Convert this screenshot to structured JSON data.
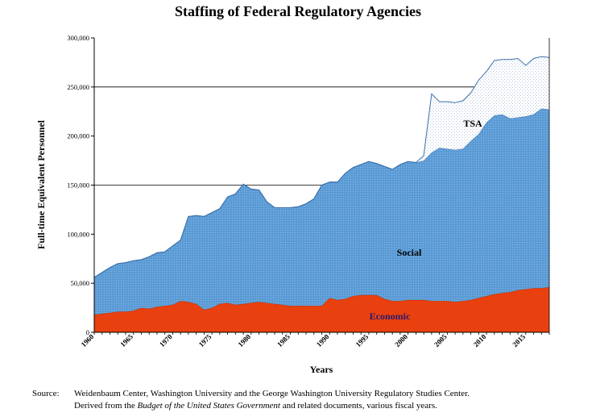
{
  "chart_data": {
    "type": "area",
    "title": "Staffing of Federal Regulatory Agencies",
    "xlabel": "Years",
    "ylabel": "Full-time Equivalent Personnel",
    "xlim": [
      1960,
      2018
    ],
    "ylim": [
      0,
      300000
    ],
    "stacked": true,
    "y_ticks": [
      "0",
      "50,000",
      "100,000",
      "150,000",
      "200,000",
      "250,000",
      "300,000"
    ],
    "x_ticks": [
      "1960",
      "1965",
      "1970",
      "1975",
      "1980",
      "1985",
      "1990",
      "1995",
      "2000",
      "2005",
      "2010",
      "2015"
    ],
    "grid": "horizontal lines at 150,000 and 250,000",
    "x": [
      1960,
      1961,
      1962,
      1963,
      1964,
      1965,
      1966,
      1967,
      1968,
      1969,
      1970,
      1971,
      1972,
      1973,
      1974,
      1975,
      1976,
      1977,
      1978,
      1979,
      1980,
      1981,
      1982,
      1983,
      1984,
      1985,
      1986,
      1987,
      1988,
      1989,
      1990,
      1991,
      1992,
      1993,
      1994,
      1995,
      1996,
      1997,
      1998,
      1999,
      2000,
      2001,
      2002,
      2003,
      2004,
      2005,
      2006,
      2007,
      2008,
      2009,
      2010,
      2011,
      2012,
      2013,
      2014,
      2015,
      2016,
      2017,
      2018
    ],
    "series": [
      {
        "name": "Economic",
        "color": "#e8400e",
        "values": [
          18000,
          19000,
          20000,
          21000,
          21000,
          22000,
          25000,
          24000,
          26000,
          27000,
          28000,
          32000,
          31000,
          29000,
          23000,
          25000,
          29000,
          30000,
          28000,
          29000,
          30000,
          31000,
          30000,
          29000,
          28000,
          27000,
          27000,
          27000,
          27000,
          27000,
          35000,
          33000,
          34000,
          37000,
          38000,
          38000,
          38000,
          34000,
          32000,
          32000,
          33000,
          33000,
          33000,
          32000,
          32000,
          32000,
          31000,
          32000,
          33000,
          35000,
          37000,
          39000,
          40000,
          41000,
          43000,
          44000,
          45000,
          45000,
          46000
        ]
      },
      {
        "name": "Social",
        "color": "#5b9bd5",
        "values": [
          38000,
          42000,
          46000,
          49000,
          50000,
          51000,
          49000,
          53000,
          55000,
          55000,
          60000,
          62000,
          87000,
          90000,
          95000,
          97000,
          97000,
          108000,
          113000,
          122000,
          116000,
          114000,
          103000,
          98000,
          99000,
          100000,
          101000,
          104000,
          109000,
          123000,
          118000,
          120000,
          128000,
          131000,
          133000,
          136000,
          134000,
          135000,
          134000,
          139000,
          141000,
          140000,
          142000,
          151000,
          156000,
          155000,
          155000,
          155000,
          162000,
          167000,
          177000,
          182000,
          182000,
          177000,
          176000,
          176000,
          177000,
          183000,
          181000
        ]
      },
      {
        "name": "TSA",
        "color": "#ffffff",
        "values": [
          0,
          0,
          0,
          0,
          0,
          0,
          0,
          0,
          0,
          0,
          0,
          0,
          0,
          0,
          0,
          0,
          0,
          0,
          0,
          0,
          0,
          0,
          0,
          0,
          0,
          0,
          0,
          0,
          0,
          0,
          0,
          0,
          0,
          0,
          0,
          0,
          0,
          0,
          0,
          0,
          0,
          0,
          5000,
          60000,
          47000,
          48000,
          48000,
          49000,
          49000,
          55000,
          52000,
          56000,
          56000,
          60000,
          60000,
          52000,
          57000,
          53000,
          53000
        ]
      }
    ]
  },
  "source": {
    "key": "Source:",
    "line1": "Weidenbaum Center, Washington University and the George Washington University Regulatory Studies Center.",
    "line2_prefix": "Derived from the ",
    "line2_italic": "Budget of the United States Government",
    "line2_suffix": " and related documents, various fiscal years."
  }
}
